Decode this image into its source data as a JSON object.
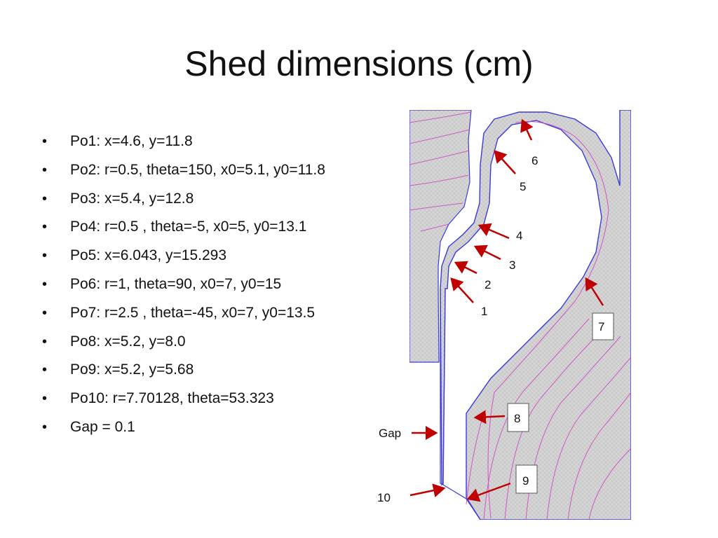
{
  "title": "Shed dimensions (cm)",
  "bullets": [
    "Po1: x=4.6, y=11.8",
    "Po2: r=0.5, theta=150, x0=5.1, y0=11.8",
    "Po3: x=5.4, y=12.8",
    "Po4: r=0.5  , theta=-5, x0=5, y0=13.1",
    "Po5: x=6.043, y=15.293",
    "Po6: r=1, theta=90, x0=7, y0=15",
    "Po7: r=2.5  , theta=-45, x0=7, y0=13.5",
    "Po8: x=5.2, y=8.0",
    "Po9: x=5.2, y=5.68",
    "Po10: r=7.70128, theta=53.323",
    "Gap = 0.1"
  ],
  "figure": {
    "point_labels": [
      "1",
      "2",
      "3",
      "4",
      "5",
      "6",
      "7",
      "8",
      "9",
      "10"
    ],
    "gap_label": "Gap",
    "colors": {
      "arrow": "#c00000",
      "outline": "#3a3ad8",
      "mesh": "#d8d8d8",
      "field_lines": "#d040c0"
    }
  }
}
